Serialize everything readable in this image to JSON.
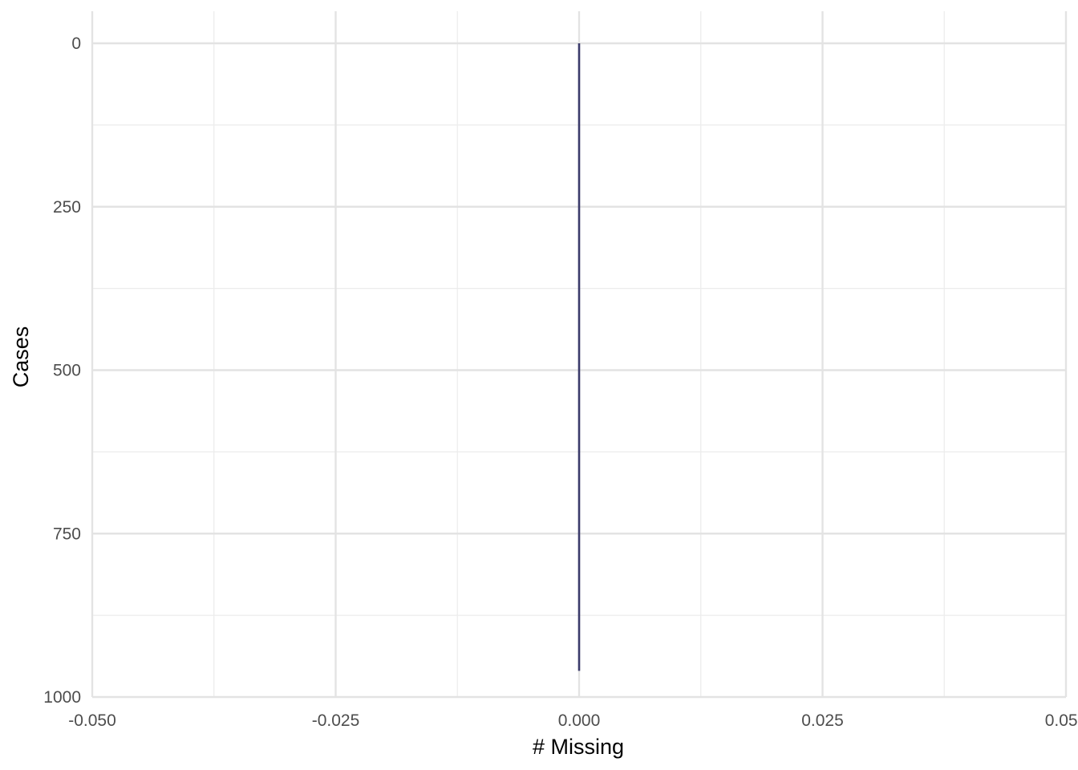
{
  "chart_data": {
    "type": "bar",
    "orientation": "horizontal",
    "xlabel": "# Missing",
    "ylabel": "Cases",
    "xlim": [
      -0.05,
      0.05
    ],
    "ylim": [
      0,
      1000
    ],
    "y_reversed": true,
    "grid": true,
    "x_ticks": [
      -0.05,
      -0.025,
      0,
      0.025,
      0.05
    ],
    "x_tick_labels": [
      "-0.050",
      "-0.025",
      "0.000",
      "0.025",
      "0.050"
    ],
    "x_minor_ticks": [
      -0.0375,
      -0.0125,
      0.0125,
      0.0375
    ],
    "y_ticks": [
      0,
      250,
      500,
      750,
      1000
    ],
    "y_tick_labels": [
      "0",
      "250",
      "500",
      "750",
      "1000"
    ],
    "y_minor_ticks": [
      125,
      375,
      625,
      875
    ],
    "bar_range": [
      1,
      960
    ],
    "bar_value": 0,
    "bar_color": "#3b3b6b"
  }
}
